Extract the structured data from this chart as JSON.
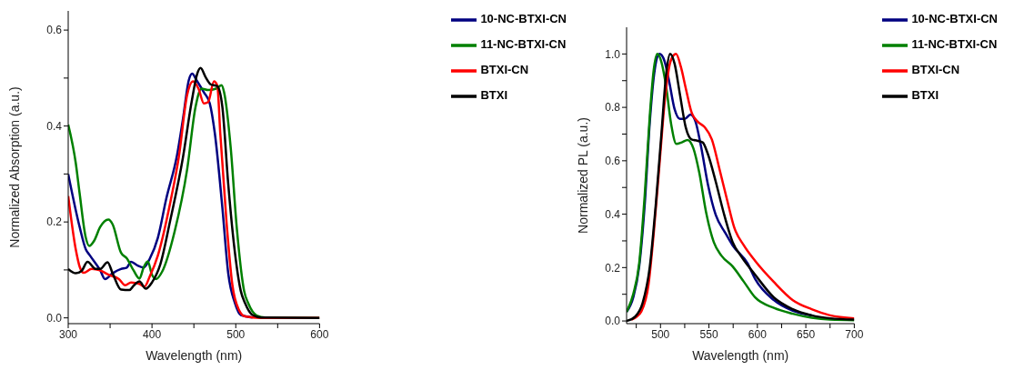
{
  "chart_data": [
    {
      "type": "line",
      "xlabel": "Wavelength (nm)",
      "ylabel": "Normalized Absorption (a.u.)",
      "legend": "top right",
      "xlim": [
        300,
        600
      ],
      "xticks": [
        300,
        {
          "value": 350,
          "label": null
        },
        400,
        {
          "value": 450,
          "label": null
        },
        500,
        {
          "value": 550,
          "label": null
        },
        600
      ],
      "ylim": [
        -0.012,
        0.64
      ],
      "yticks": [
        {
          "value": 0,
          "label": "0.0"
        },
        {
          "value": 0.1,
          "label": null
        },
        0.2,
        {
          "value": 0.3,
          "label": null
        },
        0.4,
        {
          "value": 0.5,
          "label": null
        },
        0.6
      ],
      "series": [
        {
          "name": "10-NC-BTXI-CN",
          "color": "#000080",
          "x": [
            300,
            313.6,
            321,
            326,
            338,
            344,
            353,
            363,
            370,
            375,
            383,
            390,
            397.5,
            407,
            417,
            430,
            437,
            444,
            448,
            453,
            462,
            469,
            475,
            484,
            491,
            499,
            506,
            520
          ],
          "values": [
            0.3,
            0.19,
            0.143,
            0.13,
            0.1,
            0.081,
            0.093,
            0.102,
            0.105,
            0.117,
            0.109,
            0.105,
            0.124,
            0.167,
            0.248,
            0.34,
            0.415,
            0.496,
            0.509,
            0.496,
            0.47,
            0.447,
            0.385,
            0.23,
            0.093,
            0.031,
            0.006,
            0.001
          ]
        },
        {
          "name": "11-NC-BTXI-CN",
          "color": "#008000",
          "x": [
            300,
            309,
            313.6,
            321,
            325,
            331,
            338,
            348,
            353,
            363,
            370,
            378,
            385,
            390,
            395,
            400,
            405,
            412,
            427,
            442,
            452,
            459,
            467,
            476.5,
            483,
            486,
            494,
            501,
            510,
            515,
            525,
            535,
            600
          ],
          "values": [
            0.403,
            0.323,
            0.26,
            0.167,
            0.15,
            0.161,
            0.189,
            0.205,
            0.195,
            0.136,
            0.124,
            0.099,
            0.082,
            0.105,
            0.118,
            0.09,
            0.081,
            0.096,
            0.18,
            0.31,
            0.44,
            0.478,
            0.475,
            0.478,
            0.485,
            0.471,
            0.354,
            0.192,
            0.056,
            0.03,
            0.005,
            0.001,
            0
          ]
        },
        {
          "name": "BTXI-CN",
          "color": "#ff0000",
          "x": [
            300,
            309,
            314,
            318.5,
            328,
            338,
            348,
            360.5,
            368,
            375,
            385,
            391,
            397.5,
            407,
            422,
            432,
            442,
            449,
            455.5,
            462,
            467,
            474,
            478,
            481.5,
            489,
            496,
            504,
            511,
            530,
            600
          ],
          "values": [
            0.254,
            0.143,
            0.105,
            0.094,
            0.102,
            0.099,
            0.09,
            0.081,
            0.068,
            0.074,
            0.071,
            0.065,
            0.087,
            0.13,
            0.242,
            0.335,
            0.465,
            0.493,
            0.478,
            0.447,
            0.45,
            0.493,
            0.484,
            0.385,
            0.199,
            0.068,
            0.016,
            0.003,
            0,
            0
          ]
        },
        {
          "name": "BTXI",
          "color": "#000000",
          "x": [
            300,
            309,
            316,
            323,
            333,
            338,
            347,
            353,
            363,
            373,
            378,
            385,
            392.6,
            400,
            410,
            422,
            437,
            447,
            454,
            458,
            464,
            470,
            478,
            484,
            491,
            499,
            506,
            511,
            520,
            530,
            600
          ],
          "values": [
            0.102,
            0.093,
            0.098,
            0.117,
            0.102,
            0.102,
            0.116,
            0.093,
            0.059,
            0.058,
            0.067,
            0.076,
            0.061,
            0.074,
            0.112,
            0.205,
            0.335,
            0.447,
            0.509,
            0.521,
            0.502,
            0.487,
            0.483,
            0.44,
            0.279,
            0.136,
            0.056,
            0.031,
            0.006,
            0.001,
            0
          ]
        }
      ]
    },
    {
      "type": "line",
      "xlabel": "Wavelength (nm)",
      "ylabel": "Normalized PL (a.u.)",
      "legend": "top right",
      "xlim": [
        465,
        700
      ],
      "xticks": [
        {
          "value": 475,
          "label": null
        },
        500,
        {
          "value": 525,
          "label": null
        },
        550,
        {
          "value": 575,
          "label": null
        },
        600,
        {
          "value": 625,
          "label": null
        },
        650,
        {
          "value": 675,
          "label": null
        },
        700
      ],
      "ylim": [
        -0.01,
        1.1
      ],
      "yticks": [
        {
          "value": 0,
          "label": "0.0"
        },
        {
          "value": 0.1,
          "label": null
        },
        0.2,
        {
          "value": 0.3,
          "label": null
        },
        0.4,
        {
          "value": 0.5,
          "label": null
        },
        0.6,
        {
          "value": 0.7,
          "label": null
        },
        0.8,
        {
          "value": 0.9,
          "label": null
        },
        {
          "value": 1,
          "label": "1.0"
        }
      ],
      "series": [
        {
          "name": "10-NC-BTXI-CN",
          "color": "#000080",
          "x": [
            465,
            472,
            478,
            483.6,
            489,
            494,
            499,
            504,
            509,
            514.5,
            520,
            525,
            531,
            536,
            541.6,
            549,
            557,
            567,
            574.5,
            590,
            597.7,
            617,
            636.6,
            656
          ],
          "values": [
            0.034,
            0.09,
            0.204,
            0.43,
            0.748,
            0.94,
            1.0,
            0.975,
            0.896,
            0.794,
            0.757,
            0.757,
            0.773,
            0.748,
            0.658,
            0.51,
            0.397,
            0.329,
            0.283,
            0.215,
            0.157,
            0.078,
            0.038,
            0.021
          ]
        },
        {
          "name": "11-NC-BTXI-CN",
          "color": "#008000",
          "x": [
            465,
            472,
            478,
            483.6,
            489,
            493,
            496.7,
            501,
            506,
            511,
            516.4,
            522,
            528,
            534,
            540,
            547,
            555,
            563,
            574.5,
            586,
            597.7,
            617,
            636.6,
            656,
            675,
            700
          ],
          "values": [
            0.034,
            0.102,
            0.215,
            0.465,
            0.771,
            0.94,
            1.0,
            0.969,
            0.873,
            0.737,
            0.663,
            0.669,
            0.678,
            0.646,
            0.556,
            0.408,
            0.295,
            0.244,
            0.204,
            0.147,
            0.088,
            0.049,
            0.027,
            0.012,
            0.005,
            0.003
          ]
        },
        {
          "name": "BTXI-CN",
          "color": "#ff0000",
          "x": [
            470,
            475,
            480,
            487.6,
            493,
            499,
            504.8,
            510.6,
            516,
            521,
            526,
            532,
            538,
            545.5,
            553,
            561,
            568.7,
            576,
            586,
            597.7,
            617,
            636.6,
            656,
            675,
            700
          ],
          "values": [
            0.005,
            0.015,
            0.034,
            0.136,
            0.329,
            0.59,
            0.839,
            0.975,
            1.0,
            0.952,
            0.873,
            0.782,
            0.748,
            0.726,
            0.68,
            0.567,
            0.454,
            0.351,
            0.283,
            0.225,
            0.146,
            0.078,
            0.044,
            0.021,
            0.01
          ]
        },
        {
          "name": "BTXI",
          "color": "#000000",
          "x": [
            465,
            474,
            481.6,
            489,
            495,
            501,
            506,
            510,
            514.5,
            520,
            526,
            532,
            538,
            543.5,
            549,
            557,
            565,
            574.5,
            584,
            597.7,
            617,
            636.6,
            656,
            675,
            700
          ],
          "values": [
            0.0,
            0.017,
            0.068,
            0.204,
            0.43,
            0.703,
            0.93,
            1.0,
            0.964,
            0.85,
            0.726,
            0.68,
            0.675,
            0.669,
            0.624,
            0.522,
            0.408,
            0.295,
            0.238,
            0.173,
            0.088,
            0.044,
            0.021,
            0.01,
            0.005
          ]
        }
      ]
    }
  ]
}
